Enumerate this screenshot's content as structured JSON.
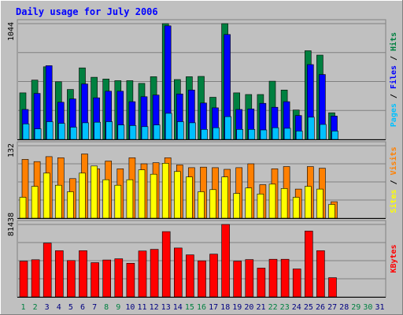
{
  "chart_data": {
    "type": "bar",
    "title": "Daily usage for July 2006",
    "x": [
      1,
      2,
      3,
      4,
      5,
      6,
      7,
      8,
      9,
      10,
      11,
      12,
      13,
      14,
      15,
      16,
      17,
      18,
      19,
      20,
      21,
      22,
      23,
      24,
      25,
      26,
      27,
      28,
      29,
      30,
      31
    ],
    "weekend_days": [
      1,
      2,
      8,
      9,
      15,
      16,
      22,
      23,
      29,
      30
    ],
    "panels": [
      {
        "id": "hits",
        "y_max_label": "1044",
        "ylim": [
          0,
          1044
        ],
        "grid": true,
        "series": [
          {
            "name": "Hits",
            "color": "#008040",
            "values": [
              420,
              535,
              655,
              520,
              450,
              645,
              560,
              545,
              530,
              530,
              505,
              565,
              1044,
              540,
              565,
              568,
              380,
              1044,
              420,
              405,
              405,
              525,
              445,
              265,
              800,
              760,
              240
            ]
          },
          {
            "name": "Files",
            "color": "#0000ff",
            "values": [
              270,
              415,
              665,
              335,
              365,
              500,
              375,
              435,
              435,
              340,
              385,
              400,
              1024,
              410,
              445,
              328,
              285,
              946,
              270,
              275,
              325,
              290,
              340,
              215,
              675,
              585,
              210
            ]
          },
          {
            "name": "Pages",
            "color": "#00c0ff",
            "values": [
              140,
              95,
              160,
              145,
              110,
              150,
              155,
              160,
              130,
              125,
              115,
              130,
              235,
              160,
              150,
              90,
              105,
              205,
              90,
              90,
              85,
              105,
              100,
              75,
              200,
              135,
              75
            ]
          }
        ]
      },
      {
        "id": "visits",
        "y_max_label": "132",
        "ylim": [
          0,
          132
        ],
        "grid": true,
        "series": [
          {
            "name": "Visits",
            "color": "#ff8000",
            "values": [
              107,
              103,
              112,
              110,
              72,
              117,
              90,
              104,
              90,
              110,
              99,
              101,
              110,
              97,
              92,
              93,
              92,
              89,
              92,
              99,
              61,
              90,
              94,
              53,
              94,
              91,
              30
            ]
          },
          {
            "name": "Sites",
            "color": "#ffff00",
            "values": [
              38,
              58,
              82,
              60,
              48,
              82,
              95,
              70,
              60,
              70,
              88,
              80,
              100,
              85,
              75,
              48,
              52,
              75,
              45,
              55,
              44,
              62,
              54,
              38,
              58,
              53,
              25
            ]
          }
        ]
      },
      {
        "id": "kbytes",
        "y_max_label": "81438",
        "ylim": [
          0,
          81438
        ],
        "grid": true,
        "series": [
          {
            "name": "KBytes",
            "color": "#ff0000",
            "values": [
              40100,
              41800,
              60500,
              52000,
              40900,
              52000,
              38500,
              41500,
              42800,
              37800,
              51600,
              53500,
              73400,
              55000,
              47300,
              40500,
              48100,
              81438,
              40200,
              42000,
              32400,
              42300,
              42300,
              31400,
              74000,
              52000,
              21600
            ]
          }
        ]
      }
    ],
    "right_labels": {
      "hits": [
        "Pages",
        "Files",
        "Hits"
      ],
      "visits": [
        "Sites",
        "Visits"
      ],
      "kbytes": [
        "KBytes"
      ]
    },
    "colors": {
      "background": "#c0c0c0",
      "title": "#0000ff",
      "weekday_label": "#000080",
      "weekend_label": "#008040",
      "sep": "#000000"
    }
  }
}
